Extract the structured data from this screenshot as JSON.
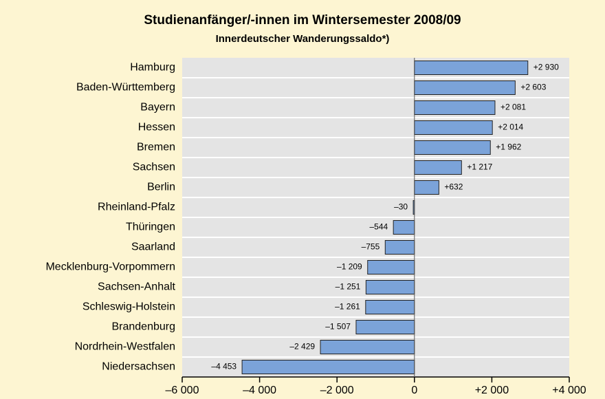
{
  "chart_data": {
    "type": "bar",
    "orientation": "horizontal",
    "title": "Studienanfänger/-innen im Wintersemester 2008/09",
    "subtitle": "Innerdeutscher Wanderungssaldo*)",
    "categories": [
      "Hamburg",
      "Baden-Württemberg",
      "Bayern",
      "Hessen",
      "Bremen",
      "Sachsen",
      "Berlin",
      "Rheinland-Pfalz",
      "Thüringen",
      "Saarland",
      "Mecklenburg-Vorpommern",
      "Sachsen-Anhalt",
      "Schleswig-Holstein",
      "Brandenburg",
      "Nordrhein-Westfalen",
      "Niedersachsen"
    ],
    "values": [
      2930,
      2603,
      2081,
      2014,
      1962,
      1217,
      632,
      -30,
      -544,
      -755,
      -1209,
      -1251,
      -1261,
      -1507,
      -2429,
      -4453
    ],
    "value_labels": [
      "+2 930",
      "+2 603",
      "+2 081",
      "+2 014",
      "+1 962",
      "+1 217",
      "+632",
      "–30",
      "–544",
      "–755",
      "–1 209",
      "–1 251",
      "–1 261",
      "–1 507",
      "–2 429",
      "–4 453"
    ],
    "color": "#7ba3d9",
    "xlim": [
      -6000,
      4000
    ],
    "xticks": [
      {
        "value": -6000,
        "label": "–6 000"
      },
      {
        "value": -4000,
        "label": "–4 000"
      },
      {
        "value": -2000,
        "label": "–2 000"
      },
      0,
      {
        "value": 2000,
        "label": "+2 000"
      },
      {
        "value": 4000,
        "label": "+4 000"
      }
    ]
  }
}
